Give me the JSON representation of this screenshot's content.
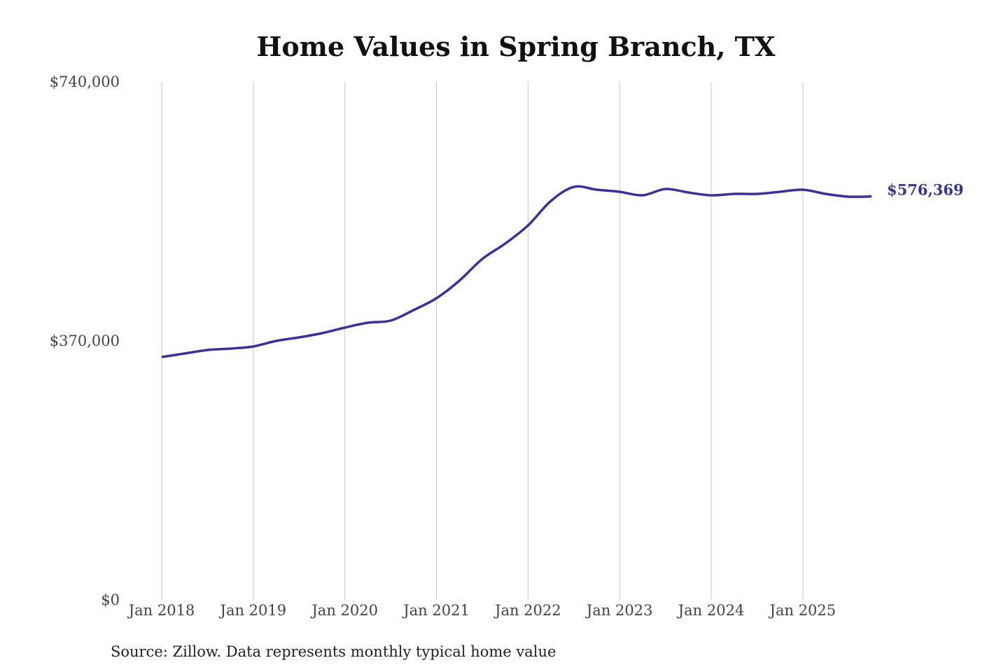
{
  "chart_data": {
    "type": "line",
    "title": "Home Values in Spring Branch, TX",
    "source": "Source: Zillow. Data represents monthly typical home value",
    "x": [
      "2018-01",
      "2018-04",
      "2018-07",
      "2018-10",
      "2019-01",
      "2019-04",
      "2019-07",
      "2019-10",
      "2020-01",
      "2020-04",
      "2020-07",
      "2020-10",
      "2021-01",
      "2021-04",
      "2021-07",
      "2021-10",
      "2022-01",
      "2022-04",
      "2022-07",
      "2022-10",
      "2023-01",
      "2023-04",
      "2023-07",
      "2023-10",
      "2024-01",
      "2024-04",
      "2024-07",
      "2024-10",
      "2025-01",
      "2025-04",
      "2025-07",
      "2025-10"
    ],
    "series": [
      {
        "name": "Spring Branch, TX",
        "color": "#38329a",
        "values": [
          347000,
          352000,
          357000,
          359000,
          362000,
          370000,
          375000,
          381000,
          389000,
          396000,
          399000,
          414000,
          431000,
          456000,
          487000,
          509000,
          535000,
          570000,
          590000,
          586000,
          583000,
          578000,
          587000,
          582000,
          578000,
          580000,
          580000,
          583000,
          586000,
          580000,
          576000,
          576369
        ],
        "end_label": "$576,369"
      }
    ],
    "xticks": [
      {
        "value": "2018-01",
        "label": "Jan 2018"
      },
      {
        "value": "2019-01",
        "label": "Jan 2019"
      },
      {
        "value": "2020-01",
        "label": "Jan 2020"
      },
      {
        "value": "2021-01",
        "label": "Jan 2021"
      },
      {
        "value": "2022-01",
        "label": "Jan 2022"
      },
      {
        "value": "2023-01",
        "label": "Jan 2023"
      },
      {
        "value": "2024-01",
        "label": "Jan 2024"
      },
      {
        "value": "2025-01",
        "label": "Jan 2025"
      }
    ],
    "ylim": [
      0,
      740000
    ],
    "yticks": [
      {
        "value": 0,
        "label": "$0"
      },
      {
        "value": 370000,
        "label": "$370,000"
      },
      {
        "value": 740000,
        "label": "$740,000"
      }
    ],
    "grid": "x"
  }
}
